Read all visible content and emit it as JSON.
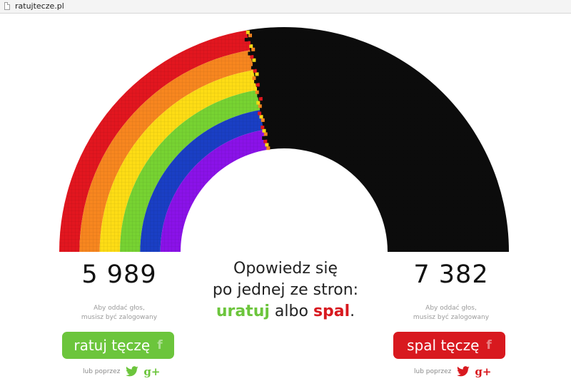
{
  "browser": {
    "url": "ratujtecze.pl"
  },
  "colors": {
    "red": "#e2161f",
    "orange": "#f7861f",
    "yellow": "#fddc15",
    "green": "#77d232",
    "blue": "#1a3fc4",
    "violet": "#8a12e8",
    "burned": "#0c0c0c",
    "save_green": "#6cc53c",
    "burn_red": "#d8191f"
  },
  "rainbow_status": {
    "saved_fraction": 0.448,
    "burned_fraction": 0.552
  },
  "left": {
    "count": "5 989",
    "note_line1": "Aby oddać głos,",
    "note_line2": "musisz być zalogowany",
    "button_label": "ratuj tęczę",
    "button_icon": "facebook-icon",
    "alt_label": "lub poprzez"
  },
  "right": {
    "count": "7 382",
    "note_line1": "Aby oddać głos,",
    "note_line2": "musisz być zalogowany",
    "button_label": "spal tęczę",
    "button_icon": "facebook-icon",
    "alt_label": "lub poprzez"
  },
  "center": {
    "line1": "Opowiedz się",
    "line2": "po jednej ze stron:",
    "word_save": "uratuj",
    "word_or": "albo",
    "word_burn": "spal",
    "period": "."
  },
  "icons": {
    "fb_glyph": "f",
    "gplus_glyph": "g+"
  }
}
